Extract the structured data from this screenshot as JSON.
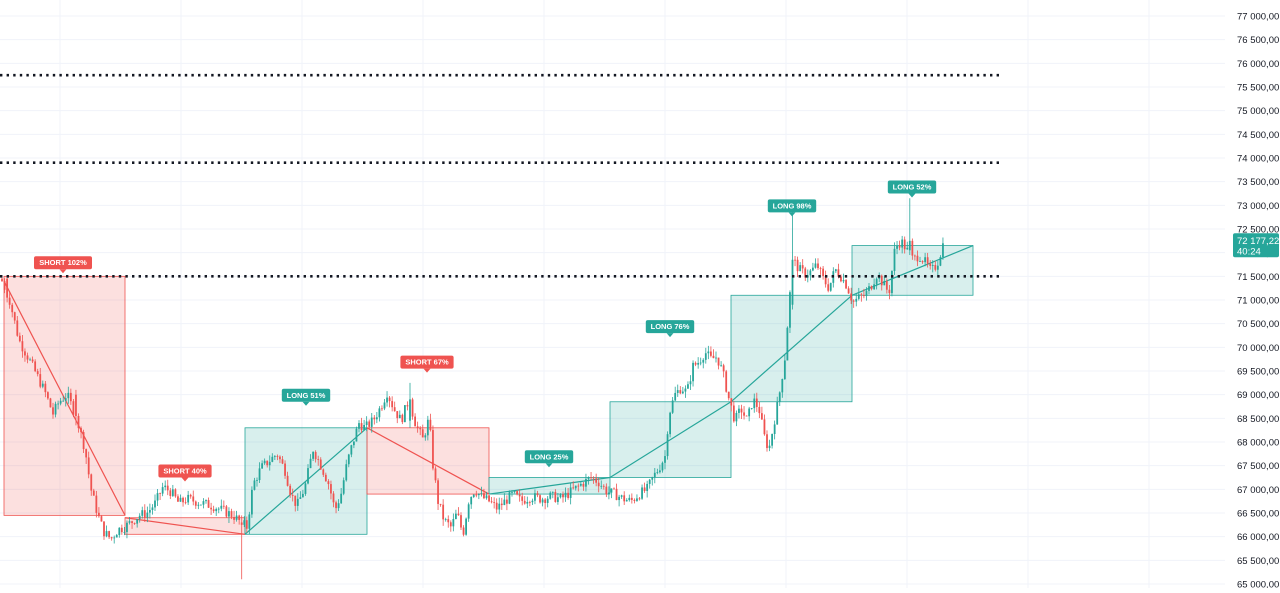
{
  "chart_data": {
    "type": "candlestick",
    "title": "",
    "xlabel": "",
    "ylabel": "",
    "ylim": [
      64900,
      77250
    ],
    "grid": true,
    "y_ticks": [
      {
        "value": 65000,
        "label": "65 000,00"
      },
      {
        "value": 65500,
        "label": "65 500,00"
      },
      {
        "value": 66000,
        "label": "66 000,00"
      },
      {
        "value": 66500,
        "label": "66 500,00"
      },
      {
        "value": 67000,
        "label": "67 000,00"
      },
      {
        "value": 67500,
        "label": "67 500,00"
      },
      {
        "value": 68000,
        "label": "68 000,00"
      },
      {
        "value": 68500,
        "label": "68 500,00"
      },
      {
        "value": 69000,
        "label": "69 000,00"
      },
      {
        "value": 69500,
        "label": "69 500,00"
      },
      {
        "value": 70000,
        "label": "70 000,00"
      },
      {
        "value": 70500,
        "label": "70 500,00"
      },
      {
        "value": 71000,
        "label": "71 000,00"
      },
      {
        "value": 71500,
        "label": "71 500,00"
      },
      {
        "value": 72000,
        "label": "72 000,00"
      },
      {
        "value": 72500,
        "label": "72 500,00"
      },
      {
        "value": 73000,
        "label": "73 000,00"
      },
      {
        "value": 73500,
        "label": "73 500,00"
      },
      {
        "value": 74000,
        "label": "74 000,00"
      },
      {
        "value": 74500,
        "label": "74 500,00"
      },
      {
        "value": 75000,
        "label": "75 000,00"
      },
      {
        "value": 75500,
        "label": "75 500,00"
      },
      {
        "value": 76000,
        "label": "76 000,00"
      },
      {
        "value": 76500,
        "label": "76 500,00"
      },
      {
        "value": 77000,
        "label": "77 000,00"
      }
    ],
    "price_path": [
      [
        0,
        71450
      ],
      [
        8,
        71050
      ],
      [
        18,
        70150
      ],
      [
        28,
        69750
      ],
      [
        35,
        69450
      ],
      [
        44,
        69050
      ],
      [
        52,
        68600
      ],
      [
        58,
        68850
      ],
      [
        66,
        69000
      ],
      [
        75,
        68550
      ],
      [
        84,
        67850
      ],
      [
        90,
        67000
      ],
      [
        97,
        66450
      ],
      [
        103,
        66100
      ],
      [
        110,
        65950
      ],
      [
        117,
        66150
      ],
      [
        123,
        66200
      ],
      [
        130,
        66300
      ],
      [
        138,
        66450
      ],
      [
        146,
        66500
      ],
      [
        154,
        66700
      ],
      [
        162,
        67050
      ],
      [
        170,
        66950
      ],
      [
        178,
        66700
      ],
      [
        186,
        66800
      ],
      [
        194,
        66750
      ],
      [
        202,
        66700
      ],
      [
        212,
        66650
      ],
      [
        222,
        66550
      ],
      [
        232,
        66450
      ],
      [
        240,
        66300
      ],
      [
        246,
        66200
      ],
      [
        252,
        67100
      ],
      [
        260,
        67450
      ],
      [
        268,
        67600
      ],
      [
        276,
        67750
      ],
      [
        284,
        67400
      ],
      [
        290,
        66900
      ],
      [
        296,
        66650
      ],
      [
        304,
        67050
      ],
      [
        312,
        67850
      ],
      [
        320,
        67500
      ],
      [
        328,
        67100
      ],
      [
        334,
        66550
      ],
      [
        340,
        66900
      ],
      [
        346,
        67550
      ],
      [
        352,
        68000
      ],
      [
        358,
        68400
      ],
      [
        364,
        68300
      ],
      [
        372,
        68450
      ],
      [
        380,
        68750
      ],
      [
        386,
        69050
      ],
      [
        393,
        68700
      ],
      [
        400,
        68450
      ],
      [
        408,
        68900
      ],
      [
        415,
        68350
      ],
      [
        422,
        68050
      ],
      [
        428,
        68500
      ],
      [
        432,
        67500
      ],
      [
        437,
        66750
      ],
      [
        443,
        66350
      ],
      [
        450,
        66200
      ],
      [
        456,
        66500
      ],
      [
        462,
        66050
      ],
      [
        468,
        66800
      ],
      [
        474,
        67000
      ],
      [
        480,
        66850
      ],
      [
        488,
        66750
      ],
      [
        496,
        66600
      ],
      [
        504,
        66750
      ],
      [
        512,
        66900
      ],
      [
        520,
        66750
      ],
      [
        530,
        66850
      ],
      [
        540,
        66800
      ],
      [
        550,
        66850
      ],
      [
        560,
        66800
      ],
      [
        570,
        66950
      ],
      [
        580,
        67100
      ],
      [
        590,
        67250
      ],
      [
        598,
        67150
      ],
      [
        606,
        66950
      ],
      [
        614,
        66900
      ],
      [
        622,
        66800
      ],
      [
        630,
        66750
      ],
      [
        638,
        66900
      ],
      [
        646,
        67000
      ],
      [
        652,
        67250
      ],
      [
        658,
        67450
      ],
      [
        664,
        67700
      ],
      [
        668,
        68600
      ],
      [
        674,
        69000
      ],
      [
        680,
        69150
      ],
      [
        686,
        69050
      ],
      [
        692,
        69600
      ],
      [
        698,
        69700
      ],
      [
        704,
        69900
      ],
      [
        710,
        69750
      ],
      [
        716,
        69800
      ],
      [
        722,
        69450
      ],
      [
        728,
        68900
      ],
      [
        734,
        68450
      ],
      [
        740,
        68700
      ],
      [
        746,
        68450
      ],
      [
        752,
        68900
      ],
      [
        758,
        68700
      ],
      [
        764,
        68050
      ],
      [
        768,
        67850
      ],
      [
        772,
        68300
      ],
      [
        778,
        68950
      ],
      [
        784,
        69800
      ],
      [
        788,
        70900
      ],
      [
        792,
        71850
      ],
      [
        798,
        71650
      ],
      [
        804,
        71550
      ],
      [
        810,
        71600
      ],
      [
        816,
        71750
      ],
      [
        822,
        71450
      ],
      [
        828,
        71250
      ],
      [
        834,
        71650
      ],
      [
        840,
        71500
      ],
      [
        846,
        71300
      ],
      [
        852,
        70950
      ],
      [
        858,
        71050
      ],
      [
        864,
        71100
      ],
      [
        870,
        71300
      ],
      [
        876,
        71550
      ],
      [
        882,
        71350
      ],
      [
        888,
        71150
      ],
      [
        894,
        72100
      ],
      [
        900,
        72250
      ],
      [
        906,
        72050
      ],
      [
        912,
        71850
      ],
      [
        918,
        71950
      ],
      [
        924,
        71800
      ],
      [
        930,
        71600
      ],
      [
        936,
        71750
      ],
      [
        942,
        72177
      ]
    ],
    "series": [
      {
        "x": 6,
        "open": 71450,
        "high": 71500,
        "low": 70950,
        "close": 71050
      },
      {
        "x": 75,
        "open": 69000,
        "high": 69100,
        "low": 68350,
        "close": 68550
      },
      {
        "x": 240,
        "open": 66300,
        "high": 66450,
        "low": 65100,
        "close": 66250
      },
      {
        "x": 408,
        "open": 68450,
        "high": 69250,
        "low": 68300,
        "close": 68900
      },
      {
        "x": 790,
        "open": 70900,
        "high": 72900,
        "low": 70800,
        "close": 71850
      },
      {
        "x": 909,
        "open": 72050,
        "high": 73150,
        "low": 71950,
        "close": 72250
      }
    ],
    "dotted_levels": [
      75750,
      73900,
      71500
    ],
    "positions": [
      {
        "label": "SHORT 102%",
        "side": "short",
        "x0": 4,
        "x1": 125,
        "entry": 71500,
        "target": 66450,
        "trend_from_x": 4,
        "trend_to_x": 125,
        "trend_from": 71400,
        "trend_to": 66450,
        "badge_x": 63,
        "badge_price": 71650
      },
      {
        "label": "SHORT 40%",
        "side": "short",
        "x0": 125,
        "x1": 245,
        "entry": 66400,
        "target": 66050,
        "trend_from_x": 125,
        "trend_to_x": 245,
        "trend_from": 66400,
        "trend_to": 66050,
        "badge_x": 185,
        "badge_price": 67250
      },
      {
        "label": "LONG 51%",
        "side": "long",
        "x0": 245,
        "x1": 367,
        "entry": 66050,
        "target": 68300,
        "trend_from_x": 245,
        "trend_to_x": 367,
        "trend_from": 66050,
        "trend_to": 68300,
        "badge_x": 306,
        "badge_price": 68850
      },
      {
        "label": "SHORT 67%",
        "side": "short",
        "x0": 367,
        "x1": 489,
        "entry": 68300,
        "target": 66900,
        "trend_from_x": 367,
        "trend_to_x": 489,
        "trend_from": 68300,
        "trend_to": 66900,
        "badge_x": 427,
        "badge_price": 69550
      },
      {
        "label": "LONG 25%",
        "side": "long",
        "x0": 489,
        "x1": 610,
        "entry": 66900,
        "target": 67250,
        "trend_from_x": 489,
        "trend_to_x": 610,
        "trend_from": 66900,
        "trend_to": 67250,
        "badge_x": 549,
        "badge_price": 67550
      },
      {
        "label": "LONG 76%",
        "side": "long",
        "x0": 610,
        "x1": 731,
        "entry": 67250,
        "target": 68850,
        "trend_from_x": 610,
        "trend_to_x": 731,
        "trend_from": 67250,
        "trend_to": 68850,
        "badge_x": 670,
        "badge_price": 70300
      },
      {
        "label": "LONG 98%",
        "side": "long",
        "x0": 731,
        "x1": 852,
        "entry": 68850,
        "target": 71100,
        "trend_from_x": 731,
        "trend_to_x": 852,
        "trend_from": 68850,
        "trend_to": 71100,
        "badge_x": 792,
        "badge_price": 72850
      },
      {
        "label": "LONG 52%",
        "side": "long",
        "x0": 852,
        "x1": 973,
        "entry": 71100,
        "target": 72150,
        "trend_from_x": 852,
        "trend_to_x": 973,
        "trend_from": 71100,
        "trend_to": 72150,
        "badge_x": 912,
        "badge_price": 73250
      }
    ],
    "last_price": {
      "value": 72177.22,
      "label": "72 177,22",
      "timer": "40:24"
    }
  },
  "colors": {
    "up": "#26a69a",
    "down": "#ef5350",
    "long_fill": "rgba(38,166,154,0.18)",
    "long_stroke": "#26a69a",
    "short_fill": "rgba(239,83,80,0.18)",
    "short_stroke": "#ef5350",
    "grid": "#f0f3fa",
    "dotted": "#131722",
    "axis_text": "#131722",
    "price_label": "#26a69a"
  }
}
